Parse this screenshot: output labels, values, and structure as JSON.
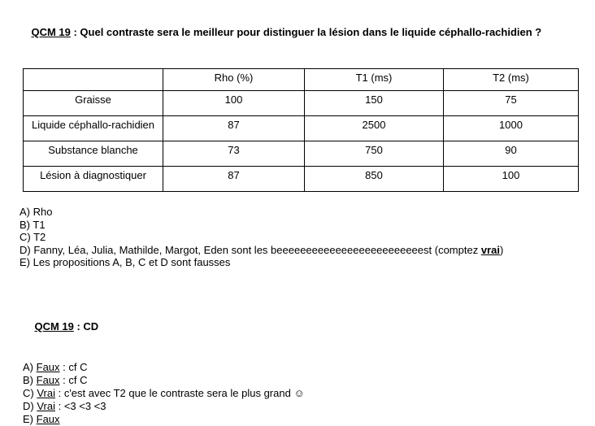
{
  "question": {
    "label": "QCM 19",
    "separator": " : ",
    "text": "Quel contraste sera le meilleur pour distinguer la lésion dans le liquide céphallo-rachidien ?"
  },
  "table": {
    "headers": [
      "",
      "Rho (%)",
      "T1 (ms)",
      "T2 (ms)"
    ],
    "rows": [
      {
        "label": "Graisse",
        "values": [
          "100",
          "150",
          "75"
        ]
      },
      {
        "label": "Liquide céphallo-rachidien",
        "values": [
          "87",
          "2500",
          "1000"
        ]
      },
      {
        "label": "Substance blanche",
        "values": [
          "73",
          "750",
          "90"
        ]
      },
      {
        "label": "Lésion à diagnostiquer",
        "values": [
          "87",
          "850",
          "100"
        ]
      }
    ]
  },
  "options": [
    {
      "letter": "A) ",
      "text": "Rho"
    },
    {
      "letter": "B) ",
      "text": "T1"
    },
    {
      "letter": "C) ",
      "text": "T2"
    },
    {
      "letter": "D) ",
      "pre": "Fanny, Léa, Julia, Mathilde, Margot, Eden sont les beeeeeeeeeeeeeeeeeeeeeeeeest (comptez ",
      "emphasis": "vrai",
      "post": ")"
    },
    {
      "letter": "E) ",
      "text": "Les propositions A, B, C et D sont fausses"
    }
  ],
  "answer_header": {
    "label": "QCM 19",
    "separator": " : ",
    "text": "CD"
  },
  "corrections": [
    {
      "letter": "A) ",
      "verdict": "Faux",
      "rest": " : cf C"
    },
    {
      "letter": "B) ",
      "verdict": "Faux",
      "rest": " : cf C"
    },
    {
      "letter": "C) ",
      "verdict": "Vrai",
      "rest": " : c'est avec T2 que le contraste sera le plus grand ☺"
    },
    {
      "letter": "D) ",
      "verdict": "Vrai",
      "rest": " : <3 <3 <3"
    },
    {
      "letter": "E) ",
      "verdict": "Faux",
      "rest": ""
    }
  ]
}
